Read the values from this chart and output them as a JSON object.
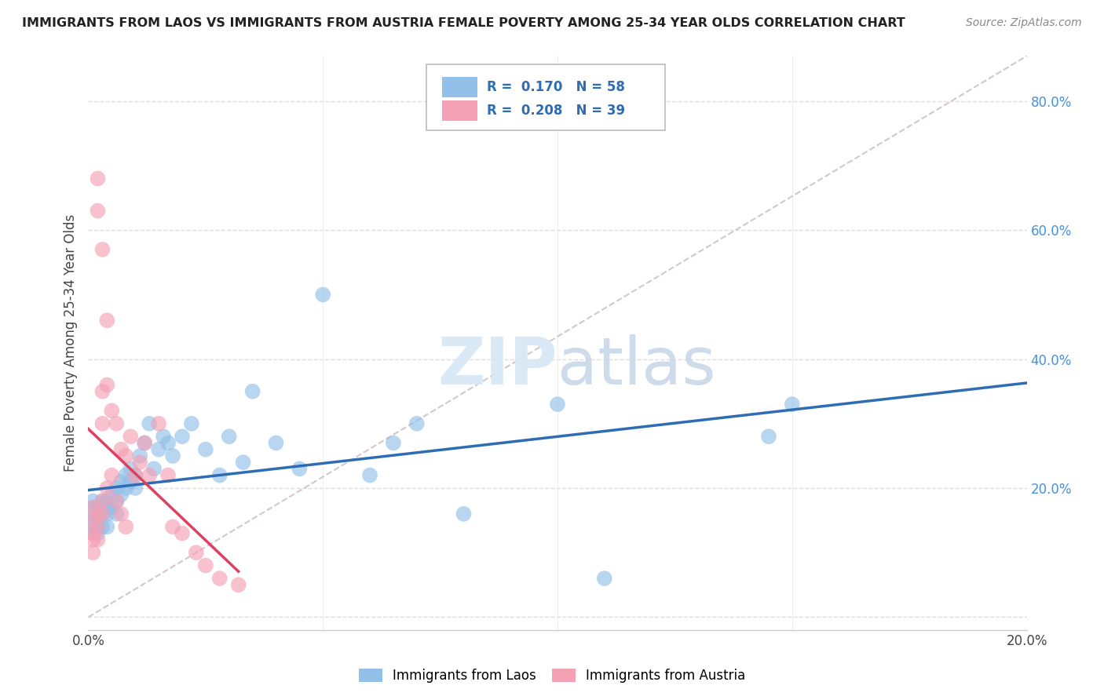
{
  "title": "IMMIGRANTS FROM LAOS VS IMMIGRANTS FROM AUSTRIA FEMALE POVERTY AMONG 25-34 YEAR OLDS CORRELATION CHART",
  "source": "Source: ZipAtlas.com",
  "ylabel": "Female Poverty Among 25-34 Year Olds",
  "xlim": [
    0.0,
    0.2
  ],
  "ylim": [
    -0.02,
    0.87
  ],
  "xticks": [
    0.0,
    0.05,
    0.1,
    0.15,
    0.2
  ],
  "xticklabels": [
    "0.0%",
    "",
    "",
    "",
    "20.0%"
  ],
  "yticks": [
    0.0,
    0.2,
    0.4,
    0.6,
    0.8
  ],
  "yticklabels": [
    "",
    "20.0%",
    "40.0%",
    "60.0%",
    "80.0%"
  ],
  "laos_color": "#92C0E8",
  "austria_color": "#F4A0B5",
  "laos_line_color": "#2E6DB4",
  "austria_line_color": "#E04060",
  "diag_color": "#D0C0C8",
  "laos_R": 0.17,
  "laos_N": 58,
  "austria_R": 0.208,
  "austria_N": 39,
  "laos_x": [
    0.001,
    0.001,
    0.001,
    0.001,
    0.001,
    0.001,
    0.002,
    0.002,
    0.002,
    0.002,
    0.002,
    0.003,
    0.003,
    0.003,
    0.003,
    0.004,
    0.004,
    0.004,
    0.004,
    0.005,
    0.005,
    0.006,
    0.006,
    0.006,
    0.007,
    0.007,
    0.008,
    0.008,
    0.009,
    0.009,
    0.01,
    0.01,
    0.011,
    0.012,
    0.013,
    0.014,
    0.015,
    0.016,
    0.017,
    0.018,
    0.02,
    0.022,
    0.025,
    0.028,
    0.03,
    0.033,
    0.035,
    0.04,
    0.045,
    0.05,
    0.06,
    0.065,
    0.07,
    0.08,
    0.1,
    0.11,
    0.145,
    0.15
  ],
  "laos_y": [
    0.17,
    0.16,
    0.18,
    0.14,
    0.15,
    0.13,
    0.17,
    0.16,
    0.15,
    0.14,
    0.13,
    0.18,
    0.17,
    0.16,
    0.14,
    0.18,
    0.17,
    0.16,
    0.14,
    0.19,
    0.17,
    0.2,
    0.18,
    0.16,
    0.21,
    0.19,
    0.22,
    0.2,
    0.23,
    0.21,
    0.22,
    0.2,
    0.25,
    0.27,
    0.3,
    0.23,
    0.26,
    0.28,
    0.27,
    0.25,
    0.28,
    0.3,
    0.26,
    0.22,
    0.28,
    0.24,
    0.35,
    0.27,
    0.23,
    0.5,
    0.22,
    0.27,
    0.3,
    0.16,
    0.33,
    0.06,
    0.28,
    0.33
  ],
  "austria_x": [
    0.001,
    0.001,
    0.001,
    0.001,
    0.001,
    0.002,
    0.002,
    0.002,
    0.002,
    0.002,
    0.003,
    0.003,
    0.003,
    0.003,
    0.003,
    0.004,
    0.004,
    0.004,
    0.005,
    0.005,
    0.006,
    0.006,
    0.007,
    0.007,
    0.008,
    0.008,
    0.009,
    0.01,
    0.011,
    0.012,
    0.013,
    0.015,
    0.017,
    0.018,
    0.02,
    0.023,
    0.025,
    0.028,
    0.032
  ],
  "austria_y": [
    0.17,
    0.15,
    0.13,
    0.12,
    0.1,
    0.68,
    0.63,
    0.16,
    0.14,
    0.12,
    0.57,
    0.35,
    0.3,
    0.18,
    0.16,
    0.46,
    0.36,
    0.2,
    0.32,
    0.22,
    0.3,
    0.18,
    0.26,
    0.16,
    0.25,
    0.14,
    0.28,
    0.22,
    0.24,
    0.27,
    0.22,
    0.3,
    0.22,
    0.14,
    0.13,
    0.1,
    0.08,
    0.06,
    0.05
  ]
}
